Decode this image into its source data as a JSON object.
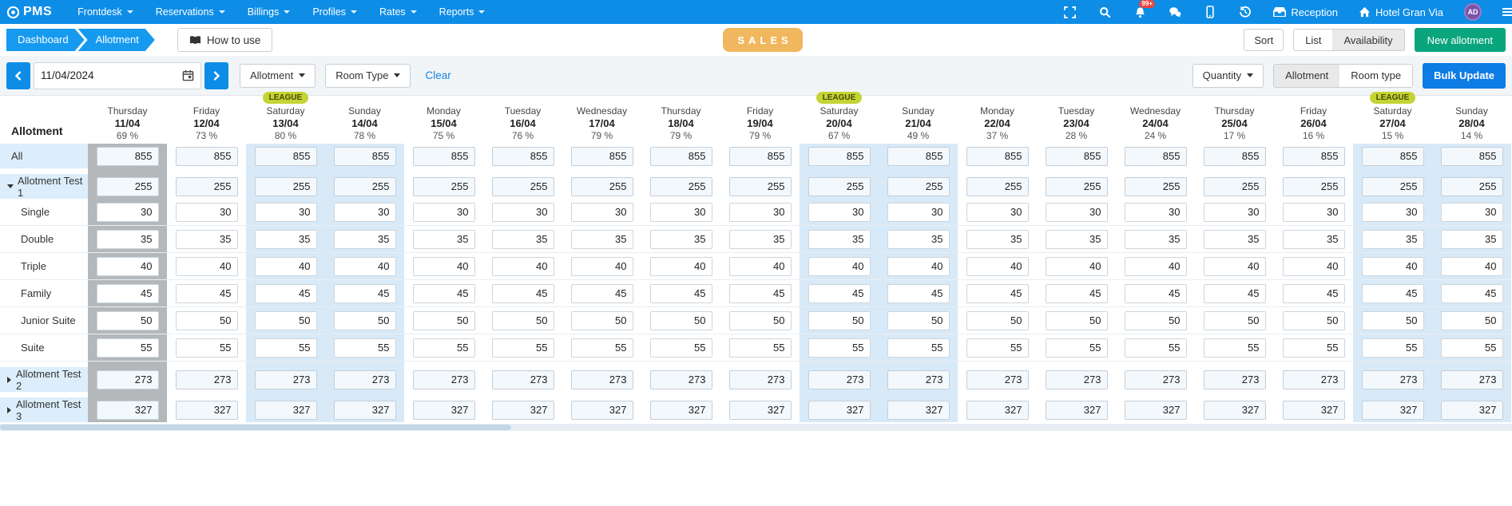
{
  "navbar": {
    "brand": "PMS",
    "menus": [
      {
        "label": "Frontdesk"
      },
      {
        "label": "Reservations"
      },
      {
        "label": "Billings"
      },
      {
        "label": "Profiles"
      },
      {
        "label": "Rates"
      },
      {
        "label": "Reports"
      }
    ],
    "notification_count": "99+",
    "reception_label": "Reception",
    "hotel_label": "Hotel Gran Via",
    "avatar_initials": "AD"
  },
  "breadcrumb": {
    "items": [
      "Dashboard",
      "Allotment"
    ]
  },
  "help_button": "How to use",
  "sales_badge": "SALES",
  "toolbar": {
    "sort": "Sort",
    "list": "List",
    "availability": "Availability",
    "new_allotment": "New allotment"
  },
  "filters": {
    "date_value": "11/04/2024",
    "allotment_dropdown": "Allotment",
    "room_type_dropdown": "Room Type",
    "clear": "Clear",
    "quantity_dropdown": "Quantity",
    "view_toggle": {
      "allotment": "Allotment",
      "room_type": "Room type"
    },
    "bulk_update": "Bulk Update"
  },
  "grid": {
    "corner_label": "Allotment",
    "league_label": "LEAGUE",
    "columns": [
      {
        "day": "Thursday",
        "date": "11/04",
        "occupancy": "69 %",
        "league": false,
        "weekend": false,
        "selected": true
      },
      {
        "day": "Friday",
        "date": "12/04",
        "occupancy": "73 %",
        "league": false,
        "weekend": false,
        "selected": false
      },
      {
        "day": "Saturday",
        "date": "13/04",
        "occupancy": "80 %",
        "league": true,
        "weekend": true,
        "selected": false
      },
      {
        "day": "Sunday",
        "date": "14/04",
        "occupancy": "78 %",
        "league": false,
        "weekend": true,
        "selected": false
      },
      {
        "day": "Monday",
        "date": "15/04",
        "occupancy": "75 %",
        "league": false,
        "weekend": false,
        "selected": false
      },
      {
        "day": "Tuesday",
        "date": "16/04",
        "occupancy": "76 %",
        "league": false,
        "weekend": false,
        "selected": false
      },
      {
        "day": "Wednesday",
        "date": "17/04",
        "occupancy": "79 %",
        "league": false,
        "weekend": false,
        "selected": false
      },
      {
        "day": "Thursday",
        "date": "18/04",
        "occupancy": "79 %",
        "league": false,
        "weekend": false,
        "selected": false
      },
      {
        "day": "Friday",
        "date": "19/04",
        "occupancy": "79 %",
        "league": false,
        "weekend": false,
        "selected": false
      },
      {
        "day": "Saturday",
        "date": "20/04",
        "occupancy": "67 %",
        "league": true,
        "weekend": true,
        "selected": false
      },
      {
        "day": "Sunday",
        "date": "21/04",
        "occupancy": "49 %",
        "league": false,
        "weekend": true,
        "selected": false
      },
      {
        "day": "Monday",
        "date": "22/04",
        "occupancy": "37 %",
        "league": false,
        "weekend": false,
        "selected": false
      },
      {
        "day": "Tuesday",
        "date": "23/04",
        "occupancy": "28 %",
        "league": false,
        "weekend": false,
        "selected": false
      },
      {
        "day": "Wednesday",
        "date": "24/04",
        "occupancy": "24 %",
        "league": false,
        "weekend": false,
        "selected": false
      },
      {
        "day": "Thursday",
        "date": "25/04",
        "occupancy": "17 %",
        "league": false,
        "weekend": false,
        "selected": false
      },
      {
        "day": "Friday",
        "date": "26/04",
        "occupancy": "16 %",
        "league": false,
        "weekend": false,
        "selected": false
      },
      {
        "day": "Saturday",
        "date": "27/04",
        "occupancy": "15 %",
        "league": true,
        "weekend": true,
        "selected": false
      },
      {
        "day": "Sunday",
        "date": "28/04",
        "occupancy": "14 %",
        "league": false,
        "weekend": true,
        "selected": false
      }
    ],
    "rows": [
      {
        "label": "All",
        "type": "all",
        "value": 855
      },
      {
        "label": "Allotment Test 1",
        "type": "parent",
        "expanded": true,
        "value": 255
      },
      {
        "label": "Single",
        "type": "child",
        "value": 30
      },
      {
        "label": "Double",
        "type": "child",
        "value": 35
      },
      {
        "label": "Triple",
        "type": "child",
        "value": 40
      },
      {
        "label": "Family",
        "type": "child",
        "value": 45
      },
      {
        "label": "Junior Suite",
        "type": "child",
        "value": 50
      },
      {
        "label": "Suite",
        "type": "child",
        "value": 55
      },
      {
        "label": "Allotment Test 2",
        "type": "parent",
        "expanded": false,
        "value": 273
      },
      {
        "label": "Allotment Test 3",
        "type": "parent",
        "expanded": false,
        "value": 327
      }
    ]
  },
  "colors": {
    "navbar_blue": "#0d8de6",
    "breadcrumb_blue": "#169af0",
    "green_button": "#0ba57d",
    "bulk_update_blue": "#0d7ce4",
    "league_pill": "#c4d433",
    "sales_badge": "#f0b75f",
    "weekend_band": "#d8e9f7",
    "selected_band": "#b4b8bb",
    "notification_red": "#e8473e",
    "avatar_purple": "#7b52ab"
  }
}
